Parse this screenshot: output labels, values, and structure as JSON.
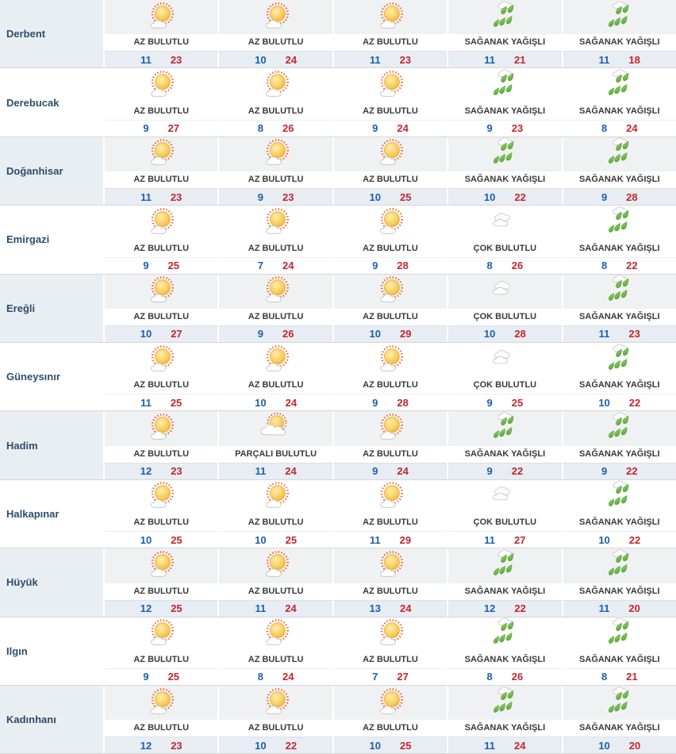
{
  "colors": {
    "min_temp": "#1c5fae",
    "max_temp": "#c4262c",
    "city_text": "#2d4e6b",
    "condition_text": "#3a3a3a",
    "tinted_row_bg": "#e7edf3",
    "tinted_icon_bg": "#f0f1f2",
    "rain_drop_green": "#62b33e",
    "sun_orange": "#f5a623"
  },
  "icon_names": [
    "sun-cloud",
    "partly-cloudy",
    "cloudy",
    "rain"
  ],
  "table": {
    "rows": [
      {
        "city": "Derbent",
        "forecasts": [
          {
            "icon": "sun-cloud",
            "condition": "AZ BULUTLU",
            "min": "11",
            "max": "23"
          },
          {
            "icon": "sun-cloud",
            "condition": "AZ BULUTLU",
            "min": "10",
            "max": "24"
          },
          {
            "icon": "sun-cloud",
            "condition": "AZ BULUTLU",
            "min": "11",
            "max": "23"
          },
          {
            "icon": "rain",
            "condition": "SAĞANAK YAĞIŞLI",
            "min": "11",
            "max": "21"
          },
          {
            "icon": "rain",
            "condition": "SAĞANAK YAĞIŞLI",
            "min": "11",
            "max": "18"
          }
        ]
      },
      {
        "city": "Derebucak",
        "forecasts": [
          {
            "icon": "sun-cloud",
            "condition": "AZ BULUTLU",
            "min": "9",
            "max": "27"
          },
          {
            "icon": "sun-cloud",
            "condition": "AZ BULUTLU",
            "min": "8",
            "max": "26"
          },
          {
            "icon": "sun-cloud",
            "condition": "AZ BULUTLU",
            "min": "9",
            "max": "24"
          },
          {
            "icon": "rain",
            "condition": "SAĞANAK YAĞIŞLI",
            "min": "9",
            "max": "23"
          },
          {
            "icon": "rain",
            "condition": "SAĞANAK YAĞIŞLI",
            "min": "8",
            "max": "24"
          }
        ]
      },
      {
        "city": "Doğanhisar",
        "forecasts": [
          {
            "icon": "sun-cloud",
            "condition": "AZ BULUTLU",
            "min": "11",
            "max": "23"
          },
          {
            "icon": "sun-cloud",
            "condition": "AZ BULUTLU",
            "min": "9",
            "max": "23"
          },
          {
            "icon": "sun-cloud",
            "condition": "AZ BULUTLU",
            "min": "10",
            "max": "25"
          },
          {
            "icon": "rain",
            "condition": "SAĞANAK YAĞIŞLI",
            "min": "10",
            "max": "22"
          },
          {
            "icon": "rain",
            "condition": "SAĞANAK YAĞIŞLI",
            "min": "9",
            "max": "28"
          }
        ]
      },
      {
        "city": "Emirgazi",
        "forecasts": [
          {
            "icon": "sun-cloud",
            "condition": "AZ BULUTLU",
            "min": "9",
            "max": "25"
          },
          {
            "icon": "sun-cloud",
            "condition": "AZ BULUTLU",
            "min": "7",
            "max": "24"
          },
          {
            "icon": "sun-cloud",
            "condition": "AZ BULUTLU",
            "min": "9",
            "max": "28"
          },
          {
            "icon": "cloudy",
            "condition": "ÇOK BULUTLU",
            "min": "8",
            "max": "26"
          },
          {
            "icon": "rain",
            "condition": "SAĞANAK YAĞIŞLI",
            "min": "8",
            "max": "22"
          }
        ]
      },
      {
        "city": "Ereğli",
        "forecasts": [
          {
            "icon": "sun-cloud",
            "condition": "AZ BULUTLU",
            "min": "10",
            "max": "27"
          },
          {
            "icon": "sun-cloud",
            "condition": "AZ BULUTLU",
            "min": "9",
            "max": "26"
          },
          {
            "icon": "sun-cloud",
            "condition": "AZ BULUTLU",
            "min": "10",
            "max": "29"
          },
          {
            "icon": "cloudy",
            "condition": "ÇOK BULUTLU",
            "min": "10",
            "max": "28"
          },
          {
            "icon": "rain",
            "condition": "SAĞANAK YAĞIŞLI",
            "min": "11",
            "max": "23"
          }
        ]
      },
      {
        "city": "Güneysınır",
        "forecasts": [
          {
            "icon": "sun-cloud",
            "condition": "AZ BULUTLU",
            "min": "11",
            "max": "25"
          },
          {
            "icon": "sun-cloud",
            "condition": "AZ BULUTLU",
            "min": "10",
            "max": "24"
          },
          {
            "icon": "sun-cloud",
            "condition": "AZ BULUTLU",
            "min": "9",
            "max": "28"
          },
          {
            "icon": "cloudy",
            "condition": "ÇOK BULUTLU",
            "min": "9",
            "max": "25"
          },
          {
            "icon": "rain",
            "condition": "SAĞANAK YAĞIŞLI",
            "min": "10",
            "max": "22"
          }
        ]
      },
      {
        "city": "Hadim",
        "forecasts": [
          {
            "icon": "sun-cloud",
            "condition": "AZ BULUTLU",
            "min": "12",
            "max": "23"
          },
          {
            "icon": "partly-cloudy",
            "condition": "PARÇALI BULUTLU",
            "min": "11",
            "max": "24"
          },
          {
            "icon": "sun-cloud",
            "condition": "AZ BULUTLU",
            "min": "9",
            "max": "24"
          },
          {
            "icon": "rain",
            "condition": "SAĞANAK YAĞIŞLI",
            "min": "9",
            "max": "22"
          },
          {
            "icon": "rain",
            "condition": "SAĞANAK YAĞIŞLI",
            "min": "9",
            "max": "22"
          }
        ]
      },
      {
        "city": "Halkapınar",
        "forecasts": [
          {
            "icon": "sun-cloud",
            "condition": "AZ BULUTLU",
            "min": "10",
            "max": "25"
          },
          {
            "icon": "sun-cloud",
            "condition": "AZ BULUTLU",
            "min": "10",
            "max": "25"
          },
          {
            "icon": "sun-cloud",
            "condition": "AZ BULUTLU",
            "min": "11",
            "max": "29"
          },
          {
            "icon": "cloudy",
            "condition": "ÇOK BULUTLU",
            "min": "11",
            "max": "27"
          },
          {
            "icon": "rain",
            "condition": "SAĞANAK YAĞIŞLI",
            "min": "10",
            "max": "22"
          }
        ]
      },
      {
        "city": "Hüyük",
        "forecasts": [
          {
            "icon": "sun-cloud",
            "condition": "AZ BULUTLU",
            "min": "12",
            "max": "25"
          },
          {
            "icon": "sun-cloud",
            "condition": "AZ BULUTLU",
            "min": "11",
            "max": "24"
          },
          {
            "icon": "sun-cloud",
            "condition": "AZ BULUTLU",
            "min": "13",
            "max": "24"
          },
          {
            "icon": "rain",
            "condition": "SAĞANAK YAĞIŞLI",
            "min": "12",
            "max": "22"
          },
          {
            "icon": "rain",
            "condition": "SAĞANAK YAĞIŞLI",
            "min": "11",
            "max": "20"
          }
        ]
      },
      {
        "city": "Ilgın",
        "forecasts": [
          {
            "icon": "sun-cloud",
            "condition": "AZ BULUTLU",
            "min": "9",
            "max": "25"
          },
          {
            "icon": "sun-cloud",
            "condition": "AZ BULUTLU",
            "min": "8",
            "max": "24"
          },
          {
            "icon": "sun-cloud",
            "condition": "AZ BULUTLU",
            "min": "7",
            "max": "27"
          },
          {
            "icon": "rain",
            "condition": "SAĞANAK YAĞIŞLI",
            "min": "8",
            "max": "26"
          },
          {
            "icon": "rain",
            "condition": "SAĞANAK YAĞIŞLI",
            "min": "8",
            "max": "21"
          }
        ]
      },
      {
        "city": "Kadınhanı",
        "forecasts": [
          {
            "icon": "sun-cloud",
            "condition": "AZ BULUTLU",
            "min": "12",
            "max": "23"
          },
          {
            "icon": "sun-cloud",
            "condition": "AZ BULUTLU",
            "min": "10",
            "max": "22"
          },
          {
            "icon": "sun-cloud",
            "condition": "AZ BULUTLU",
            "min": "10",
            "max": "25"
          },
          {
            "icon": "rain",
            "condition": "SAĞANAK YAĞIŞLI",
            "min": "11",
            "max": "24"
          },
          {
            "icon": "rain",
            "condition": "SAĞANAK YAĞIŞLI",
            "min": "10",
            "max": "20"
          }
        ]
      }
    ]
  }
}
